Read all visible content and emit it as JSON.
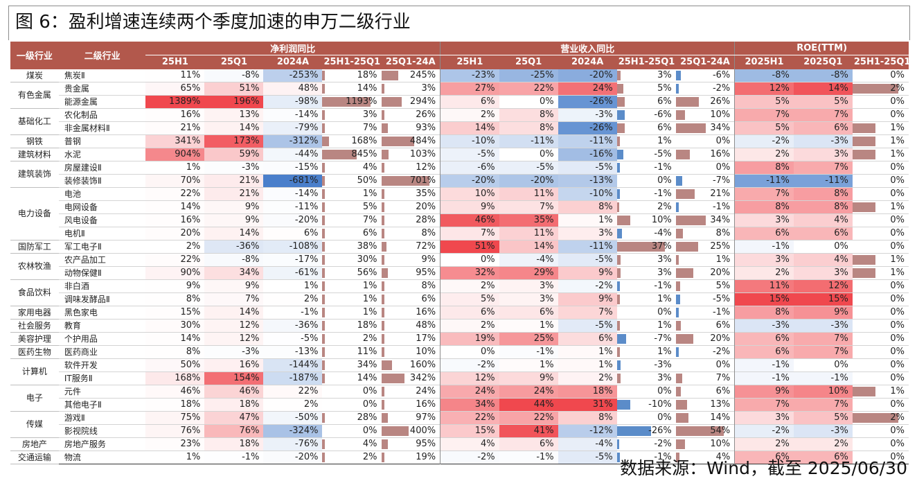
{
  "title": "图 6：盈利增速连续两个季度加速的申万二级行业",
  "footer": "数据来源：Wind，截至 2025/06/30",
  "headers": {
    "level1": "一级行业",
    "level2": "二级行业",
    "group_profit": "净利润同比",
    "group_revenue": "营业收入同比",
    "group_roe": "ROE(TTM)",
    "profit_cols": [
      "25H1",
      "25Q1",
      "2024A",
      "25H1-25Q1",
      "25Q1-24A"
    ],
    "revenue_cols": [
      "25H1",
      "25Q1",
      "2024A",
      "25H1-25Q1",
      "25Q1-24A"
    ],
    "roe_cols": [
      "2025H1",
      "2025Q1",
      "25H1-25Q1"
    ]
  },
  "colors": {
    "header_bg": "#b2584c",
    "bar_positive": "#b98682",
    "bar_negative": "#5b8cc9",
    "heat_positive": "#f0484e",
    "heat_negative": "#4a7fcb"
  },
  "rows": [
    {
      "l1": "煤炭",
      "span": 1,
      "l2": "焦炭Ⅱ",
      "p": [
        "11%",
        "-8%",
        "-253%",
        "18%",
        "245%"
      ],
      "r": [
        "-23%",
        "-25%",
        "-20%",
        "3%",
        "-6%"
      ],
      "e": [
        "-8%",
        "-8%",
        "0%"
      ]
    },
    {
      "l1": "有色金属",
      "span": 2,
      "l2": "贵金属",
      "p": [
        "65%",
        "51%",
        "48%",
        "14%",
        "3%"
      ],
      "r": [
        "27%",
        "22%",
        "24%",
        "5%",
        "-2%"
      ],
      "e": [
        "12%",
        "14%",
        "2%"
      ]
    },
    {
      "l1": "",
      "span": 0,
      "l2": "能源金属",
      "p": [
        "1389%",
        "196%",
        "-98%",
        "1193%",
        "294%"
      ],
      "r": [
        "6%",
        "0%",
        "-26%",
        "6%",
        "26%"
      ],
      "e": [
        "5%",
        "5%",
        "0%"
      ]
    },
    {
      "l1": "基础化工",
      "span": 2,
      "l2": "农化制品",
      "p": [
        "16%",
        "13%",
        "-14%",
        "3%",
        "26%"
      ],
      "r": [
        "2%",
        "8%",
        "-3%",
        "-6%",
        "10%"
      ],
      "e": [
        "7%",
        "7%",
        "0%"
      ]
    },
    {
      "l1": "",
      "span": 0,
      "l2": "非金属材料Ⅱ",
      "p": [
        "21%",
        "14%",
        "-79%",
        "7%",
        "93%"
      ],
      "r": [
        "14%",
        "8%",
        "-26%",
        "6%",
        "34%"
      ],
      "e": [
        "5%",
        "6%",
        "1%"
      ]
    },
    {
      "l1": "钢铁",
      "span": 1,
      "l2": "普钢",
      "p": [
        "341%",
        "173%",
        "-312%",
        "168%",
        "484%"
      ],
      "r": [
        "-10%",
        "-11%",
        "-11%",
        "1%",
        "0%"
      ],
      "e": [
        "-2%",
        "-3%",
        "1%"
      ]
    },
    {
      "l1": "建筑材料",
      "span": 1,
      "l2": "水泥",
      "p": [
        "904%",
        "59%",
        "-44%",
        "845%",
        "103%"
      ],
      "r": [
        "-5%",
        "0%",
        "-16%",
        "-5%",
        "16%"
      ],
      "e": [
        "2%",
        "3%",
        "1%"
      ]
    },
    {
      "l1": "建筑装饰",
      "span": 2,
      "l2": "房屋建设Ⅱ",
      "p": [
        "1%",
        "-3%",
        "-15%",
        "4%",
        "12%"
      ],
      "r": [
        "-6%",
        "-5%",
        "-5%",
        "-1%",
        "0%"
      ],
      "e": [
        "8%",
        "7%",
        "0%"
      ]
    },
    {
      "l1": "",
      "span": 0,
      "l2": "装修装饰Ⅱ",
      "p": [
        "70%",
        "21%",
        "-681%",
        "50%",
        "701%"
      ],
      "r": [
        "-20%",
        "-20%",
        "-13%",
        "0%",
        "-7%"
      ],
      "e": [
        "-11%",
        "-11%",
        "0%"
      ]
    },
    {
      "l1": "电力设备",
      "span": 4,
      "l2": "电池",
      "p": [
        "22%",
        "21%",
        "-14%",
        "1%",
        "35%"
      ],
      "r": [
        "10%",
        "11%",
        "-10%",
        "-1%",
        "21%"
      ],
      "e": [
        "7%",
        "8%",
        "0%"
      ]
    },
    {
      "l1": "",
      "span": 0,
      "l2": "电网设备",
      "p": [
        "14%",
        "9%",
        "-11%",
        "5%",
        "20%"
      ],
      "r": [
        "9%",
        "7%",
        "8%",
        "2%",
        "-1%"
      ],
      "e": [
        "8%",
        "8%",
        "1%"
      ]
    },
    {
      "l1": "",
      "span": 0,
      "l2": "风电设备",
      "p": [
        "16%",
        "9%",
        "-20%",
        "7%",
        "28%"
      ],
      "r": [
        "46%",
        "35%",
        "1%",
        "10%",
        "34%"
      ],
      "e": [
        "3%",
        "4%",
        "0%"
      ]
    },
    {
      "l1": "",
      "span": 0,
      "l2": "电机Ⅱ",
      "p": [
        "20%",
        "14%",
        "6%",
        "6%",
        "8%"
      ],
      "r": [
        "7%",
        "11%",
        "3%",
        "-4%",
        "8%"
      ],
      "e": [
        "6%",
        "6%",
        "0%"
      ]
    },
    {
      "l1": "国防军工",
      "span": 1,
      "l2": "军工电子Ⅱ",
      "p": [
        "2%",
        "-36%",
        "-108%",
        "38%",
        "72%"
      ],
      "r": [
        "51%",
        "14%",
        "-11%",
        "37%",
        "25%"
      ],
      "e": [
        "-1%",
        "0%",
        "0%"
      ]
    },
    {
      "l1": "农林牧渔",
      "span": 2,
      "l2": "农产品加工",
      "p": [
        "22%",
        "-8%",
        "-17%",
        "30%",
        "9%"
      ],
      "r": [
        "0%",
        "-4%",
        "-5%",
        "3%",
        "1%"
      ],
      "e": [
        "3%",
        "4%",
        "1%"
      ]
    },
    {
      "l1": "",
      "span": 0,
      "l2": "动物保健Ⅱ",
      "p": [
        "90%",
        "34%",
        "-61%",
        "56%",
        "95%"
      ],
      "r": [
        "32%",
        "29%",
        "9%",
        "3%",
        "20%"
      ],
      "e": [
        "2%",
        "3%",
        "1%"
      ]
    },
    {
      "l1": "食品饮料",
      "span": 2,
      "l2": "非白酒",
      "p": [
        "9%",
        "9%",
        "1%",
        "1%",
        "8%"
      ],
      "r": [
        "2%",
        "3%",
        "-2%",
        "-1%",
        "5%"
      ],
      "e": [
        "11%",
        "12%",
        "0%"
      ]
    },
    {
      "l1": "",
      "span": 0,
      "l2": "调味发酵品Ⅱ",
      "p": [
        "8%",
        "7%",
        "2%",
        "1%",
        "6%"
      ],
      "r": [
        "5%",
        "3%",
        "9%",
        "1%",
        "-5%"
      ],
      "e": [
        "15%",
        "15%",
        "0%"
      ]
    },
    {
      "l1": "家用电器",
      "span": 1,
      "l2": "黑色家电",
      "p": [
        "15%",
        "14%",
        "-1%",
        "1%",
        "16%"
      ],
      "r": [
        "6%",
        "6%",
        "7%",
        "0%",
        "-1%"
      ],
      "e": [
        "8%",
        "9%",
        "0%"
      ]
    },
    {
      "l1": "社会服务",
      "span": 1,
      "l2": "教育",
      "p": [
        "30%",
        "12%",
        "-36%",
        "18%",
        "48%"
      ],
      "r": [
        "2%",
        "1%",
        "-5%",
        "1%",
        "6%"
      ],
      "e": [
        "-3%",
        "-3%",
        "0%"
      ]
    },
    {
      "l1": "美容护理",
      "span": 1,
      "l2": "个护用品",
      "p": [
        "14%",
        "12%",
        "-5%",
        "2%",
        "17%"
      ],
      "r": [
        "19%",
        "25%",
        "6%",
        "-7%",
        "20%"
      ],
      "e": [
        "6%",
        "7%",
        "0%"
      ]
    },
    {
      "l1": "医药生物",
      "span": 1,
      "l2": "医药商业",
      "p": [
        "8%",
        "-3%",
        "-13%",
        "11%",
        "10%"
      ],
      "r": [
        "0%",
        "-1%",
        "1%",
        "1%",
        "-2%"
      ],
      "e": [
        "6%",
        "7%",
        "0%"
      ]
    },
    {
      "l1": "计算机",
      "span": 2,
      "l2": "软件开发",
      "p": [
        "50%",
        "16%",
        "-144%",
        "34%",
        "160%"
      ],
      "r": [
        "-2%",
        "1%",
        "1%",
        "-3%",
        "0%"
      ],
      "e": [
        "-1%",
        "0%",
        "0%"
      ]
    },
    {
      "l1": "",
      "span": 0,
      "l2": "IT服务Ⅱ",
      "p": [
        "168%",
        "154%",
        "-187%",
        "14%",
        "342%"
      ],
      "r": [
        "12%",
        "9%",
        "2%",
        "3%",
        "7%"
      ],
      "e": [
        "-1%",
        "-1%",
        "0%"
      ]
    },
    {
      "l1": "电子",
      "span": 2,
      "l2": "元件",
      "p": [
        "46%",
        "46%",
        "22%",
        "0%",
        "24%"
      ],
      "r": [
        "24%",
        "24%",
        "18%",
        "0%",
        "6%"
      ],
      "e": [
        "9%",
        "10%",
        "1%"
      ]
    },
    {
      "l1": "",
      "span": 0,
      "l2": "其他电子Ⅱ",
      "p": [
        "18%",
        "18%",
        "2%",
        "0%",
        "16%"
      ],
      "r": [
        "34%",
        "44%",
        "31%",
        "-10%",
        "13%"
      ],
      "e": [
        "7%",
        "7%",
        "0%"
      ]
    },
    {
      "l1": "传媒",
      "span": 2,
      "l2": "游戏Ⅱ",
      "p": [
        "75%",
        "47%",
        "-50%",
        "28%",
        "97%"
      ],
      "r": [
        "22%",
        "22%",
        "8%",
        "0%",
        "14%"
      ],
      "e": [
        "3%",
        "5%",
        "2%"
      ]
    },
    {
      "l1": "",
      "span": 0,
      "l2": "影视院线",
      "p": [
        "76%",
        "76%",
        "-324%",
        "0%",
        "400%"
      ],
      "r": [
        "15%",
        "41%",
        "-12%",
        "-26%",
        "54%"
      ],
      "e": [
        "-2%",
        "-3%",
        "0%"
      ]
    },
    {
      "l1": "房地产",
      "span": 1,
      "l2": "房地产服务",
      "p": [
        "23%",
        "18%",
        "-76%",
        "4%",
        "95%"
      ],
      "r": [
        "4%",
        "6%",
        "-4%",
        "-2%",
        "10%"
      ],
      "e": [
        "2%",
        "2%",
        "0%"
      ]
    },
    {
      "l1": "交通运输",
      "span": 1,
      "l2": "物流",
      "p": [
        "1%",
        "-1%",
        "-20%",
        "2%",
        "19%"
      ],
      "r": [
        "-2%",
        "-1%",
        "-5%",
        "-1%",
        "4%"
      ],
      "e": [
        "6%",
        "6%",
        "0%"
      ]
    }
  ]
}
